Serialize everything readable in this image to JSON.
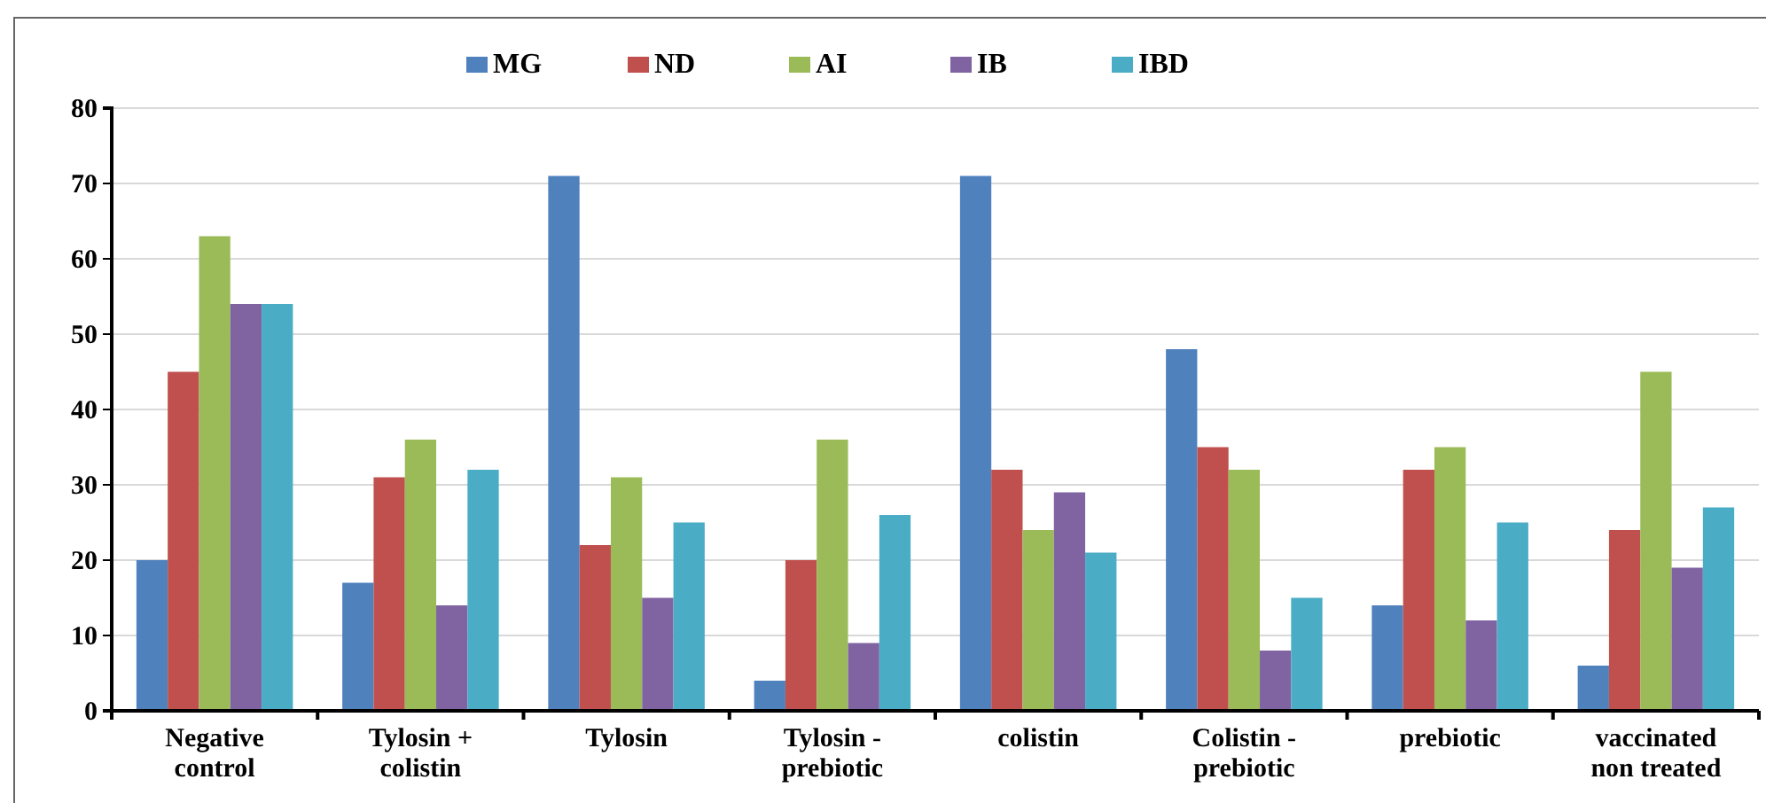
{
  "chart_data": {
    "type": "bar",
    "categories": [
      "Negative control",
      "Tylosin + colistin",
      "Tylosin",
      "Tylosin - prebiotic",
      "colistin",
      "Colistin - prebiotic",
      "prebiotic",
      "vaccinated non treated"
    ],
    "series": [
      {
        "name": "MG",
        "color": "#4f81bd",
        "values": [
          20,
          17,
          71,
          4,
          71,
          48,
          14,
          6
        ]
      },
      {
        "name": "ND",
        "color": "#c0504d",
        "values": [
          45,
          31,
          22,
          20,
          32,
          35,
          32,
          24
        ]
      },
      {
        "name": "AI",
        "color": "#9bbb59",
        "values": [
          63,
          36,
          31,
          36,
          24,
          32,
          35,
          45
        ]
      },
      {
        "name": "IB",
        "color": "#8064a2",
        "values": [
          54,
          14,
          15,
          9,
          29,
          8,
          12,
          19
        ]
      },
      {
        "name": "IBD",
        "color": "#4bacc6",
        "values": [
          54,
          32,
          25,
          26,
          21,
          15,
          25,
          27
        ]
      }
    ],
    "ylim": [
      0,
      80
    ],
    "yticks": [
      0,
      10,
      20,
      30,
      40,
      50,
      60,
      70,
      80
    ],
    "grid": "y",
    "legend": "top"
  }
}
